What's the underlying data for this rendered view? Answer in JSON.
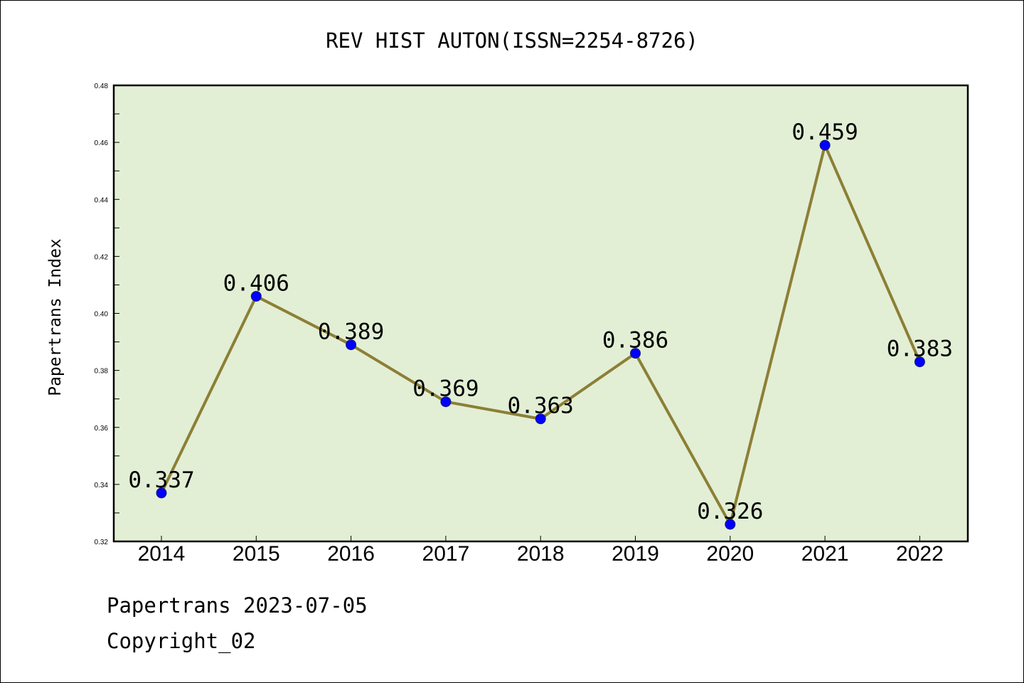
{
  "chart_data": {
    "type": "line",
    "title": "REV HIST AUTON(ISSN=2254-8726)",
    "ylabel": "Papertrans Index",
    "xlabel": "",
    "categories": [
      "2014",
      "2015",
      "2016",
      "2017",
      "2018",
      "2019",
      "2020",
      "2021",
      "2022"
    ],
    "series": [
      {
        "values": [
          0.337,
          0.406,
          0.389,
          0.369,
          0.363,
          0.386,
          0.326,
          0.459,
          0.383
        ],
        "labels": [
          "0.337",
          "0.406",
          "0.389",
          "0.369",
          "0.363",
          "0.386",
          "0.326",
          "0.459",
          "0.383"
        ]
      }
    ],
    "ylim": [
      0.32,
      0.48
    ],
    "yticks": [
      "0.32",
      "0.34",
      "0.36",
      "0.38",
      "0.40",
      "0.42",
      "0.44",
      "0.46",
      "0.48"
    ],
    "grid": false,
    "colors": {
      "plot_background": "#e2efd5",
      "line": "#8c7f35",
      "marker": "#0000ff"
    }
  },
  "footer": {
    "line1": "Papertrans 2023-07-05",
    "line2": "Copyright_02"
  }
}
